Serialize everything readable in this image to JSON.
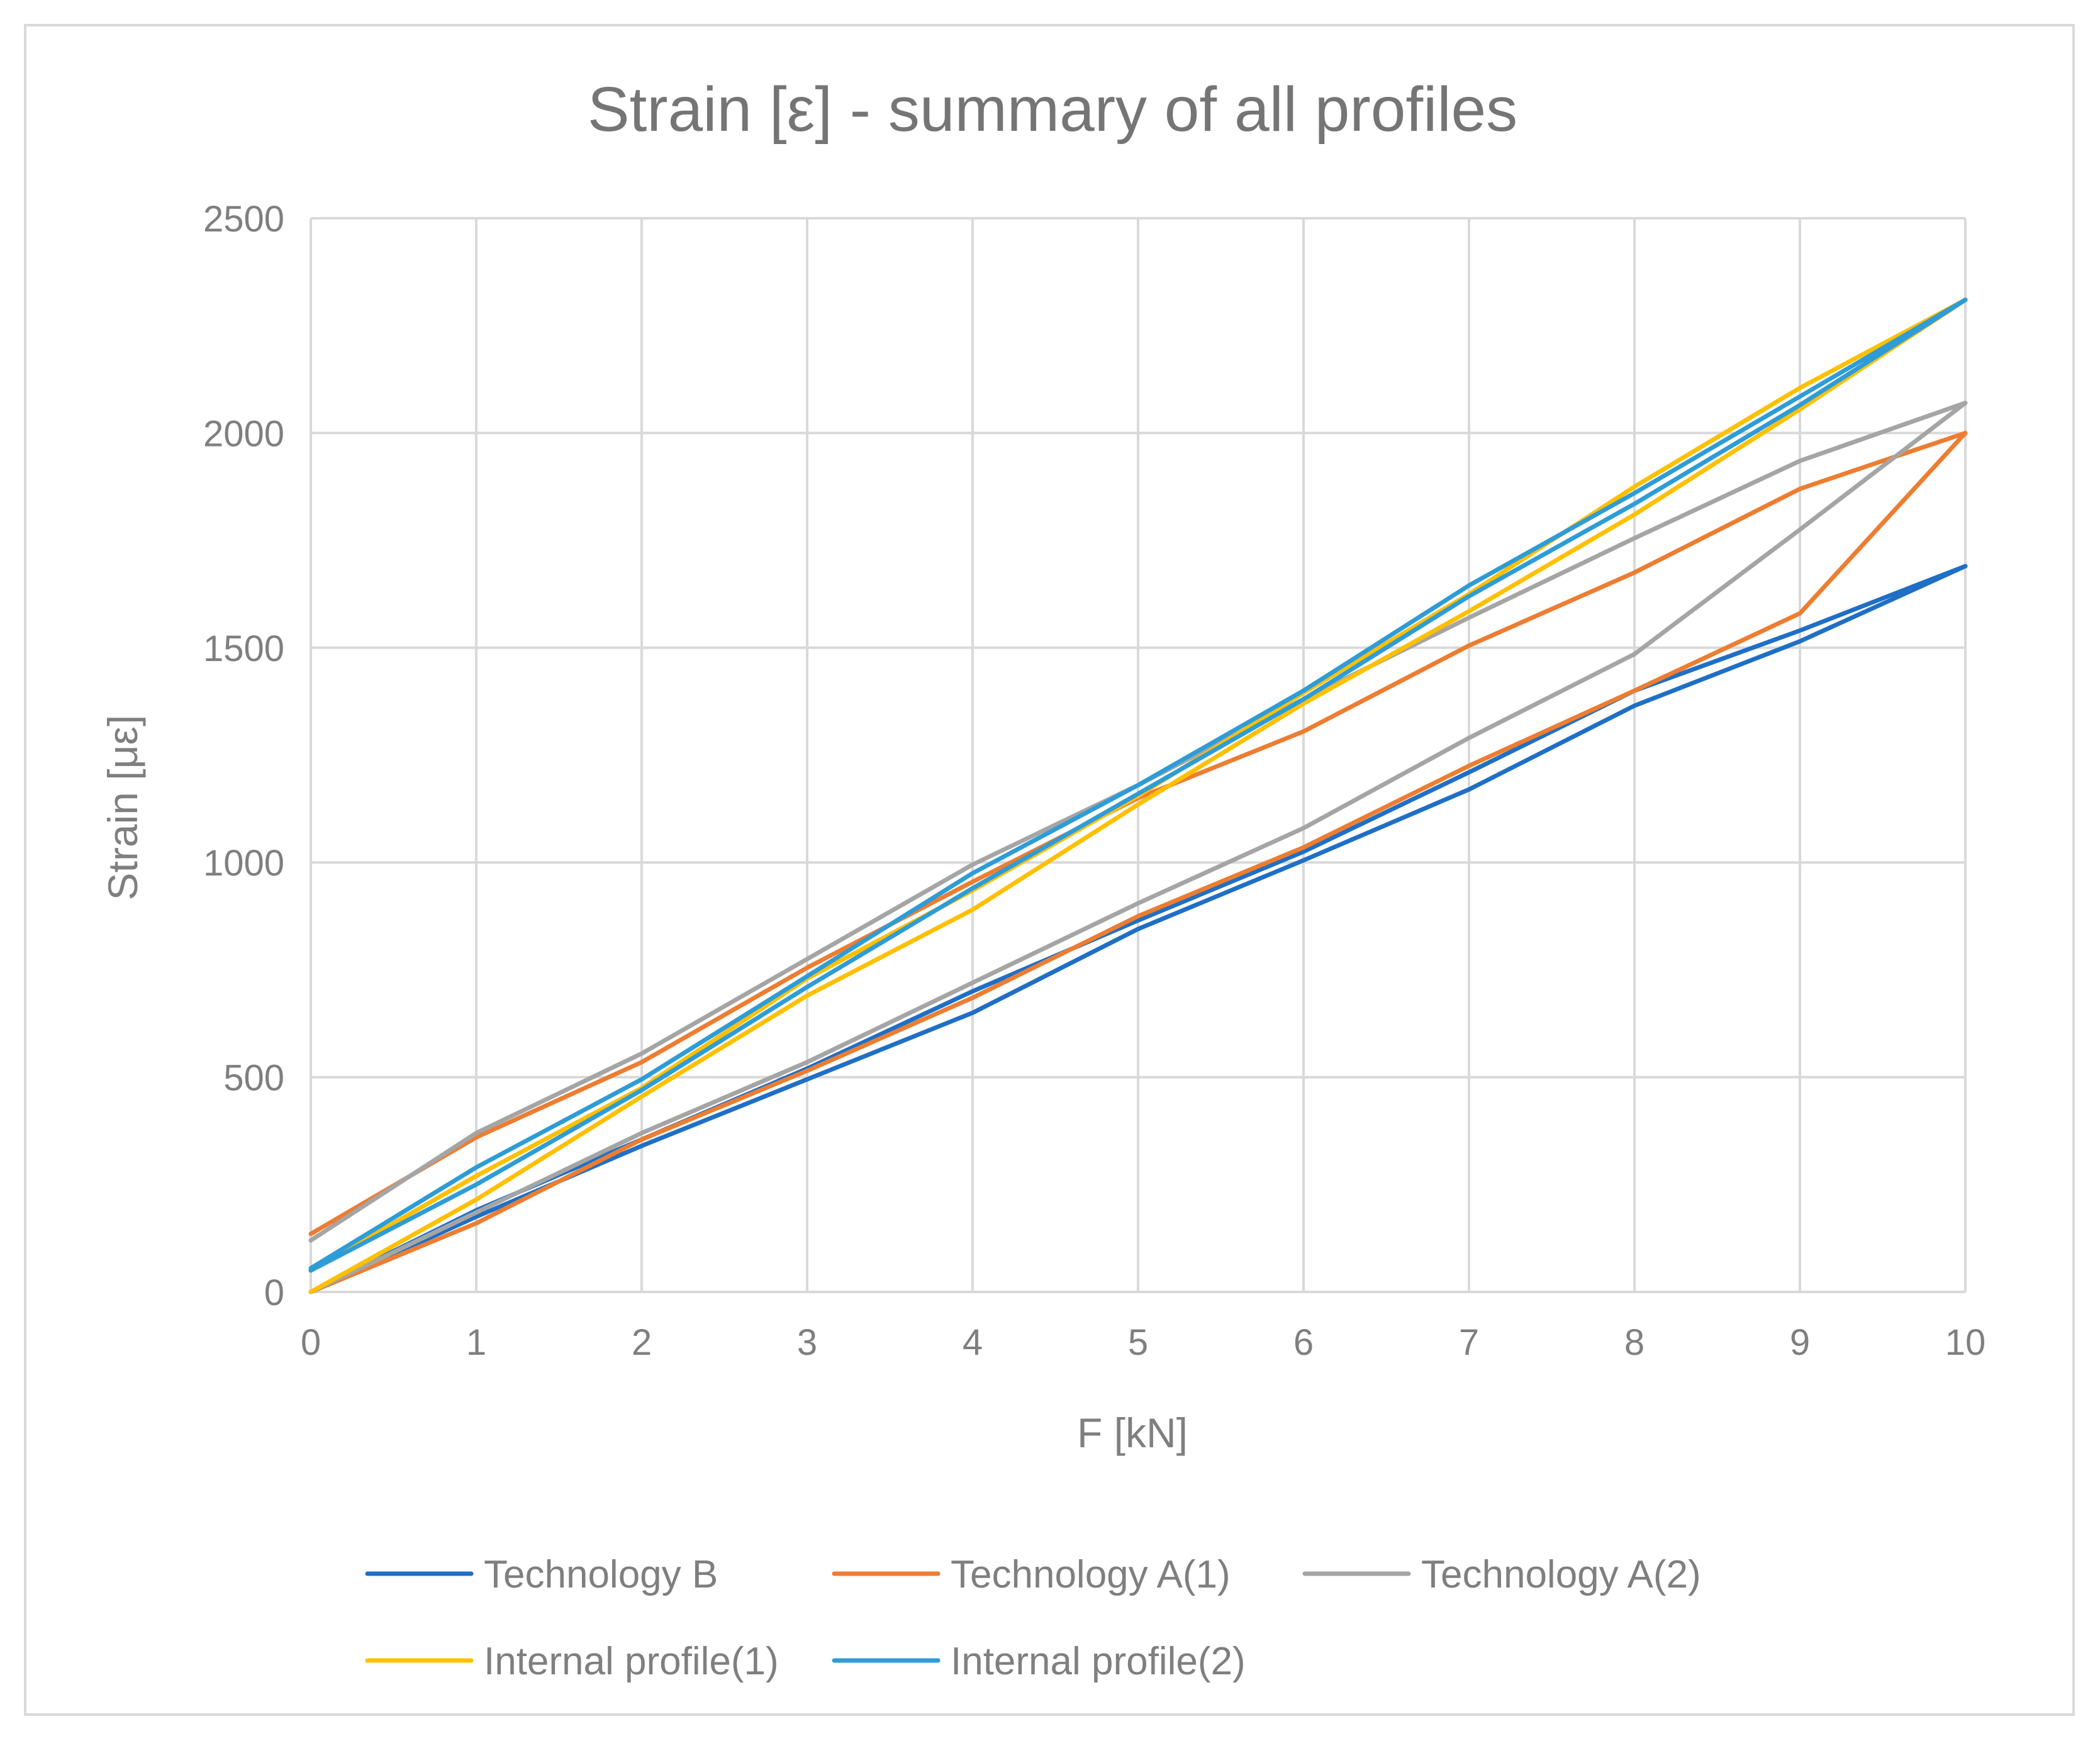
{
  "chart_data": {
    "type": "line",
    "title": "Strain [ε] - summary of all profiles",
    "xlabel": "F [kN]",
    "ylabel": "Strain [με]",
    "xlim": [
      0,
      10
    ],
    "ylim": [
      0,
      2500
    ],
    "x_ticks": [
      "0",
      "1",
      "2",
      "3",
      "4",
      "5",
      "6",
      "7",
      "8",
      "9",
      "10"
    ],
    "y_ticks": [
      "0",
      "500",
      "1000",
      "1500",
      "2000",
      "2500"
    ],
    "grid": true,
    "legend_position": "bottom",
    "series": [
      {
        "name": "Technology B",
        "color": "#1f6fc6",
        "x": [
          0,
          1,
          2,
          3,
          4,
          5,
          6,
          7,
          8,
          9,
          10,
          9,
          8,
          7,
          6,
          5,
          4,
          3,
          2,
          1,
          0
        ],
        "y": [
          0,
          175,
          340,
          495,
          650,
          845,
          1005,
          1170,
          1365,
          1515,
          1690,
          1540,
          1400,
          1210,
          1025,
          865,
          700,
          520,
          355,
          190,
          0
        ]
      },
      {
        "name": "Technology A(1)",
        "color": "#ed7d31",
        "x": [
          0,
          1,
          2,
          3,
          4,
          5,
          6,
          7,
          8,
          9,
          10,
          9,
          8,
          7,
          6,
          5,
          4,
          3,
          2,
          1,
          0
        ],
        "y": [
          0,
          160,
          355,
          515,
          685,
          875,
          1035,
          1225,
          1400,
          1580,
          2000,
          1870,
          1675,
          1505,
          1305,
          1150,
          955,
          755,
          535,
          360,
          135
        ]
      },
      {
        "name": "Technology A(2)",
        "color": "#a5a5a5",
        "x": [
          0,
          1,
          2,
          3,
          4,
          5,
          6,
          7,
          8,
          9,
          10,
          9,
          8,
          7,
          6,
          5,
          4,
          3,
          2,
          1,
          0
        ],
        "y": [
          0,
          185,
          370,
          535,
          720,
          905,
          1080,
          1290,
          1485,
          1775,
          2070,
          1935,
          1755,
          1570,
          1380,
          1180,
          995,
          775,
          555,
          370,
          120
        ]
      },
      {
        "name": "Internal profile(1)",
        "color": "#ffc000",
        "x": [
          0,
          1,
          2,
          3,
          4,
          5,
          6,
          7,
          8,
          9,
          10,
          9,
          8,
          7,
          6,
          5,
          4,
          3,
          2,
          1,
          0
        ],
        "y": [
          0,
          215,
          455,
          690,
          890,
          1135,
          1370,
          1585,
          1810,
          2055,
          2310,
          2105,
          1875,
          1625,
          1395,
          1155,
          935,
          730,
          475,
          270,
          50
        ]
      },
      {
        "name": "Internal profile(2)",
        "color": "#2e9cd6",
        "x": [
          0,
          1,
          2,
          3,
          4,
          5,
          6,
          7,
          8,
          9,
          10,
          9,
          8,
          7,
          6,
          5,
          4,
          3,
          2,
          1,
          0
        ],
        "y": [
          50,
          250,
          470,
          710,
          940,
          1160,
          1380,
          1620,
          1835,
          2065,
          2310,
          2085,
          1860,
          1645,
          1400,
          1180,
          975,
          735,
          495,
          290,
          55
        ]
      }
    ]
  }
}
